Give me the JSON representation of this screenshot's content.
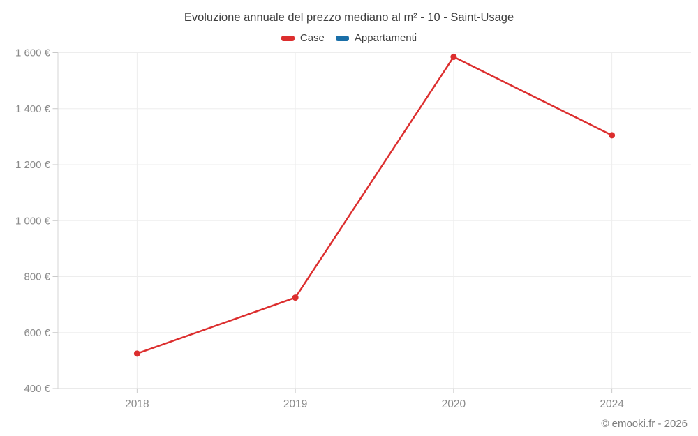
{
  "chart": {
    "title": "Evoluzione annuale del prezzo mediano al m² - 10 - Saint-Usage",
    "legend": [
      {
        "label": "Case",
        "color": "#dc2e2e"
      },
      {
        "label": "Appartamenti",
        "color": "#1a6fa8"
      }
    ]
  },
  "chart_data": {
    "type": "line",
    "title": "Evoluzione annuale del prezzo mediano al m² - 10 - Saint-Usage",
    "categories": [
      "2018",
      "2019",
      "2020",
      "2024"
    ],
    "series": [
      {
        "name": "Case",
        "color": "#dc2e2e",
        "values": [
          525,
          725,
          1585,
          1305
        ]
      },
      {
        "name": "Appartamenti",
        "color": "#1a6fa8",
        "values": []
      }
    ],
    "xlabel": "",
    "ylabel": "",
    "ylim": [
      400,
      1600
    ],
    "y_ticks": [
      400,
      600,
      800,
      1000,
      1200,
      1400,
      1600
    ],
    "y_tick_labels": [
      "400 €",
      "600 €",
      "800 €",
      "1 000 €",
      "1 200 €",
      "1 400 €",
      "1 600 €"
    ],
    "currency": "€",
    "grid": true,
    "legend_position": "top",
    "colors": {
      "gridline": "#ededed",
      "axis_line": "#d4d4d4",
      "tick": "#c9c9c9",
      "axis_label": "#8b8b8b",
      "title_text": "#3f3f3f"
    }
  },
  "footer": {
    "copyright": "© emooki.fr - 2026"
  }
}
